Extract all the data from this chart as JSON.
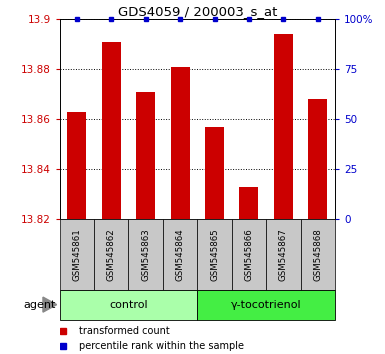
{
  "title": "GDS4059 / 200003_s_at",
  "samples": [
    "GSM545861",
    "GSM545862",
    "GSM545863",
    "GSM545864",
    "GSM545865",
    "GSM545866",
    "GSM545867",
    "GSM545868"
  ],
  "red_values": [
    13.863,
    13.891,
    13.871,
    13.881,
    13.857,
    13.833,
    13.894,
    13.868
  ],
  "blue_values": [
    100,
    100,
    100,
    100,
    100,
    100,
    100,
    100
  ],
  "ylim_left": [
    13.82,
    13.9
  ],
  "ylim_right": [
    0,
    100
  ],
  "yticks_left": [
    13.82,
    13.84,
    13.86,
    13.88,
    13.9
  ],
  "yticks_right": [
    0,
    25,
    50,
    75,
    100
  ],
  "groups": [
    {
      "label": "control",
      "indices": [
        0,
        1,
        2,
        3
      ],
      "color": "#aaffaa"
    },
    {
      "label": "γ-tocotrienol",
      "indices": [
        4,
        5,
        6,
        7
      ],
      "color": "#44ee44"
    }
  ],
  "agent_label": "agent",
  "legend_items": [
    {
      "color": "#cc0000",
      "label": "transformed count"
    },
    {
      "color": "#0000cc",
      "label": "percentile rank within the sample"
    }
  ],
  "bar_color": "#cc0000",
  "dot_color": "#0000cc",
  "grid_color": "#000000",
  "ylabel_left_color": "#cc0000",
  "ylabel_right_color": "#0000cc",
  "background_color": "#ffffff",
  "tick_area_color": "#c8c8c8",
  "bar_width": 0.55
}
